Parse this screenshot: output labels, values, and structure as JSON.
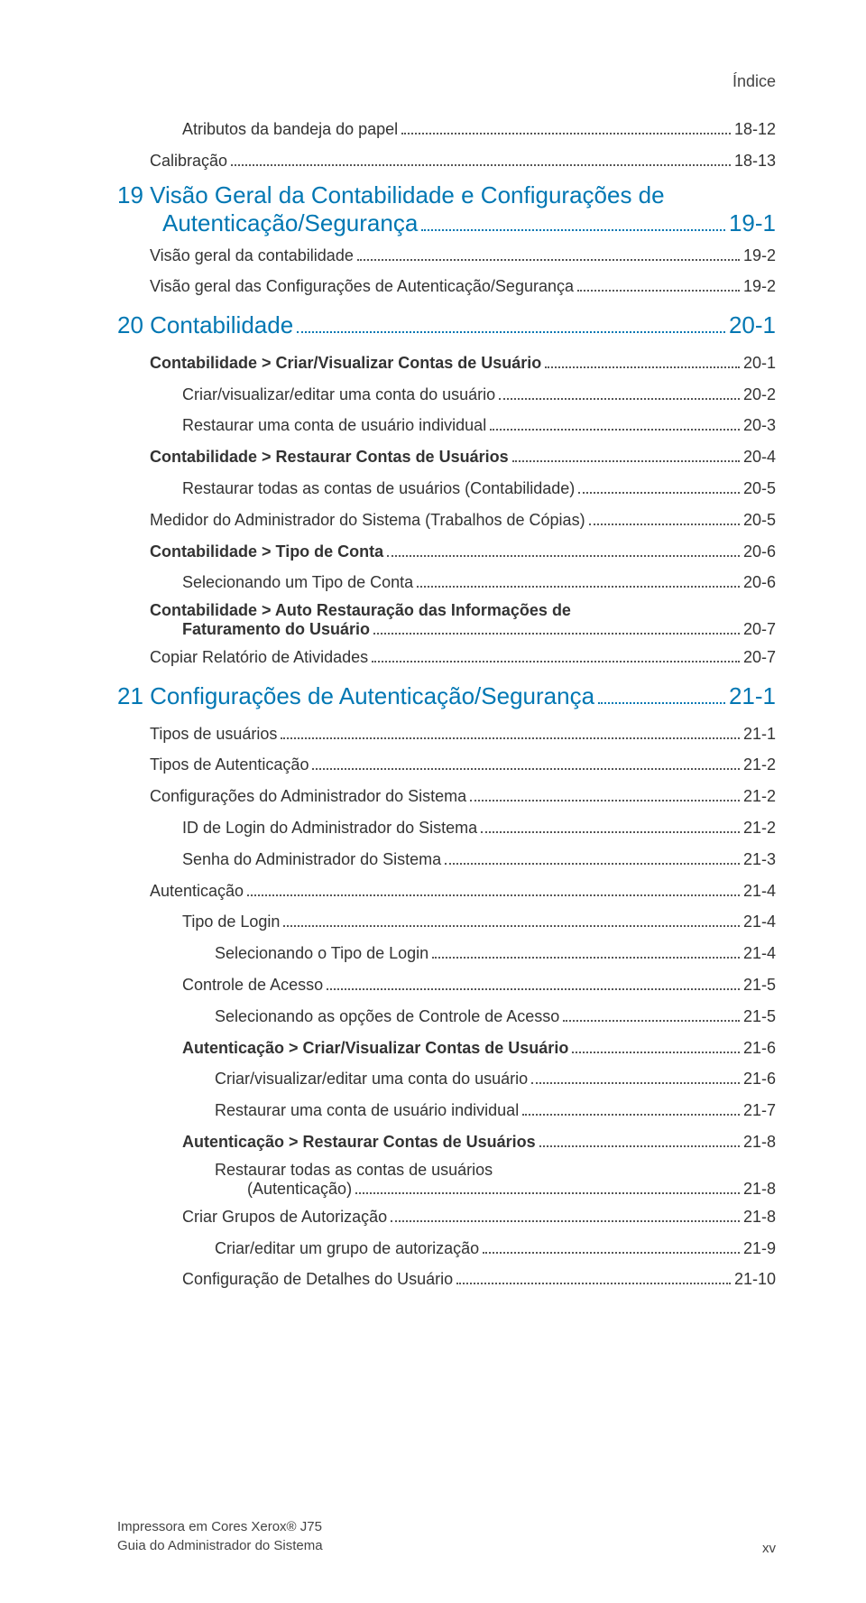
{
  "header": "Índice",
  "toc": [
    {
      "cls": "lvl2",
      "text": "Atributos da bandeja do papel",
      "page": "18-12"
    },
    {
      "cls": "lvl1",
      "text": "Calibração",
      "page": "18-13"
    },
    {
      "cls": "chapter",
      "text": "19 Visão Geral da Contabilidade e Configurações de Autenticação/Segurança",
      "page": "19-1",
      "wrap": true,
      "wrapIndent": 50
    },
    {
      "cls": "lvl1",
      "text": "Visão geral da contabilidade",
      "page": "19-2"
    },
    {
      "cls": "lvl1",
      "text": "Visão geral das Configurações de Autenticação/Segurança",
      "page": "19-2"
    },
    {
      "cls": "chapter",
      "text": "20 Contabilidade",
      "page": "20-1"
    },
    {
      "cls": "lvl1 bold",
      "text": "Contabilidade > Criar/Visualizar Contas de Usuário",
      "page": "20-1"
    },
    {
      "cls": "lvl2",
      "text": "Criar/visualizar/editar uma conta do usuário",
      "page": "20-2"
    },
    {
      "cls": "lvl2",
      "text": "Restaurar uma conta de usuário individual",
      "page": "20-3"
    },
    {
      "cls": "lvl1 bold",
      "text": "Contabilidade > Restaurar Contas de Usuários",
      "page": "20-4"
    },
    {
      "cls": "lvl2",
      "text": "Restaurar todas as contas de usuários (Contabilidade)",
      "page": "20-5"
    },
    {
      "cls": "lvl1",
      "text": "Medidor do Administrador do Sistema (Trabalhos de Cópias)",
      "page": "20-5"
    },
    {
      "cls": "lvl1 bold",
      "text": "Contabilidade > Tipo de Conta",
      "page": "20-6"
    },
    {
      "cls": "lvl2",
      "text": "Selecionando um Tipo de Conta",
      "page": "20-6"
    },
    {
      "cls": "multi",
      "line1": "Contabilidade > Auto Restauração das Informações de",
      "line2": "Faturamento do Usuário",
      "page": "20-7",
      "boldMulti": true
    },
    {
      "cls": "lvl1",
      "text": "Copiar Relatório de Atividades",
      "page": "20-7"
    },
    {
      "cls": "chapter",
      "text": "21 Configurações de Autenticação/Segurança",
      "page": "21-1"
    },
    {
      "cls": "lvl1",
      "text": "Tipos de usuários",
      "page": "21-1"
    },
    {
      "cls": "lvl1",
      "text": "Tipos de Autenticação",
      "page": "21-2"
    },
    {
      "cls": "lvl1",
      "text": "Configurações do Administrador do Sistema",
      "page": "21-2"
    },
    {
      "cls": "lvl2",
      "text": "ID de Login do Administrador do Sistema",
      "page": "21-2"
    },
    {
      "cls": "lvl2",
      "text": "Senha do Administrador do Sistema",
      "page": "21-3"
    },
    {
      "cls": "lvl1",
      "text": "Autenticação",
      "page": "21-4"
    },
    {
      "cls": "lvl2",
      "text": "Tipo de Login",
      "page": "21-4"
    },
    {
      "cls": "lvl3",
      "text": "Selecionando o Tipo de Login",
      "page": "21-4"
    },
    {
      "cls": "lvl2",
      "text": "Controle de Acesso",
      "page": "21-5"
    },
    {
      "cls": "lvl3",
      "text": "Selecionando as opções de Controle de Acesso",
      "page": "21-5"
    },
    {
      "cls": "lvl2 bold",
      "text": "Autenticação > Criar/Visualizar Contas de Usuário",
      "page": "21-6"
    },
    {
      "cls": "lvl3",
      "text": "Criar/visualizar/editar uma conta do usuário",
      "page": "21-6"
    },
    {
      "cls": "lvl3",
      "text": "Restaurar uma conta de usuário individual",
      "page": "21-7"
    },
    {
      "cls": "lvl2 bold",
      "text": "Autenticação > Restaurar Contas de Usuários",
      "page": "21-8"
    },
    {
      "cls": "multi3",
      "line1": "Restaurar todas as contas de usuários",
      "line2": "(Autenticação)",
      "page": "21-8"
    },
    {
      "cls": "lvl2",
      "text": "Criar Grupos de Autorização",
      "page": "21-8"
    },
    {
      "cls": "lvl3",
      "text": "Criar/editar um grupo de autorização",
      "page": "21-9"
    },
    {
      "cls": "lvl2",
      "text": "Configuração de Detalhes do Usuário",
      "page": "21-10"
    }
  ],
  "footer": {
    "line1": "Impressora em Cores Xerox® J75",
    "line2": "Guia do Administrador do Sistema",
    "pageNum": "xv"
  },
  "colors": {
    "link": "#0077b3",
    "text": "#333333",
    "bg": "#ffffff"
  }
}
